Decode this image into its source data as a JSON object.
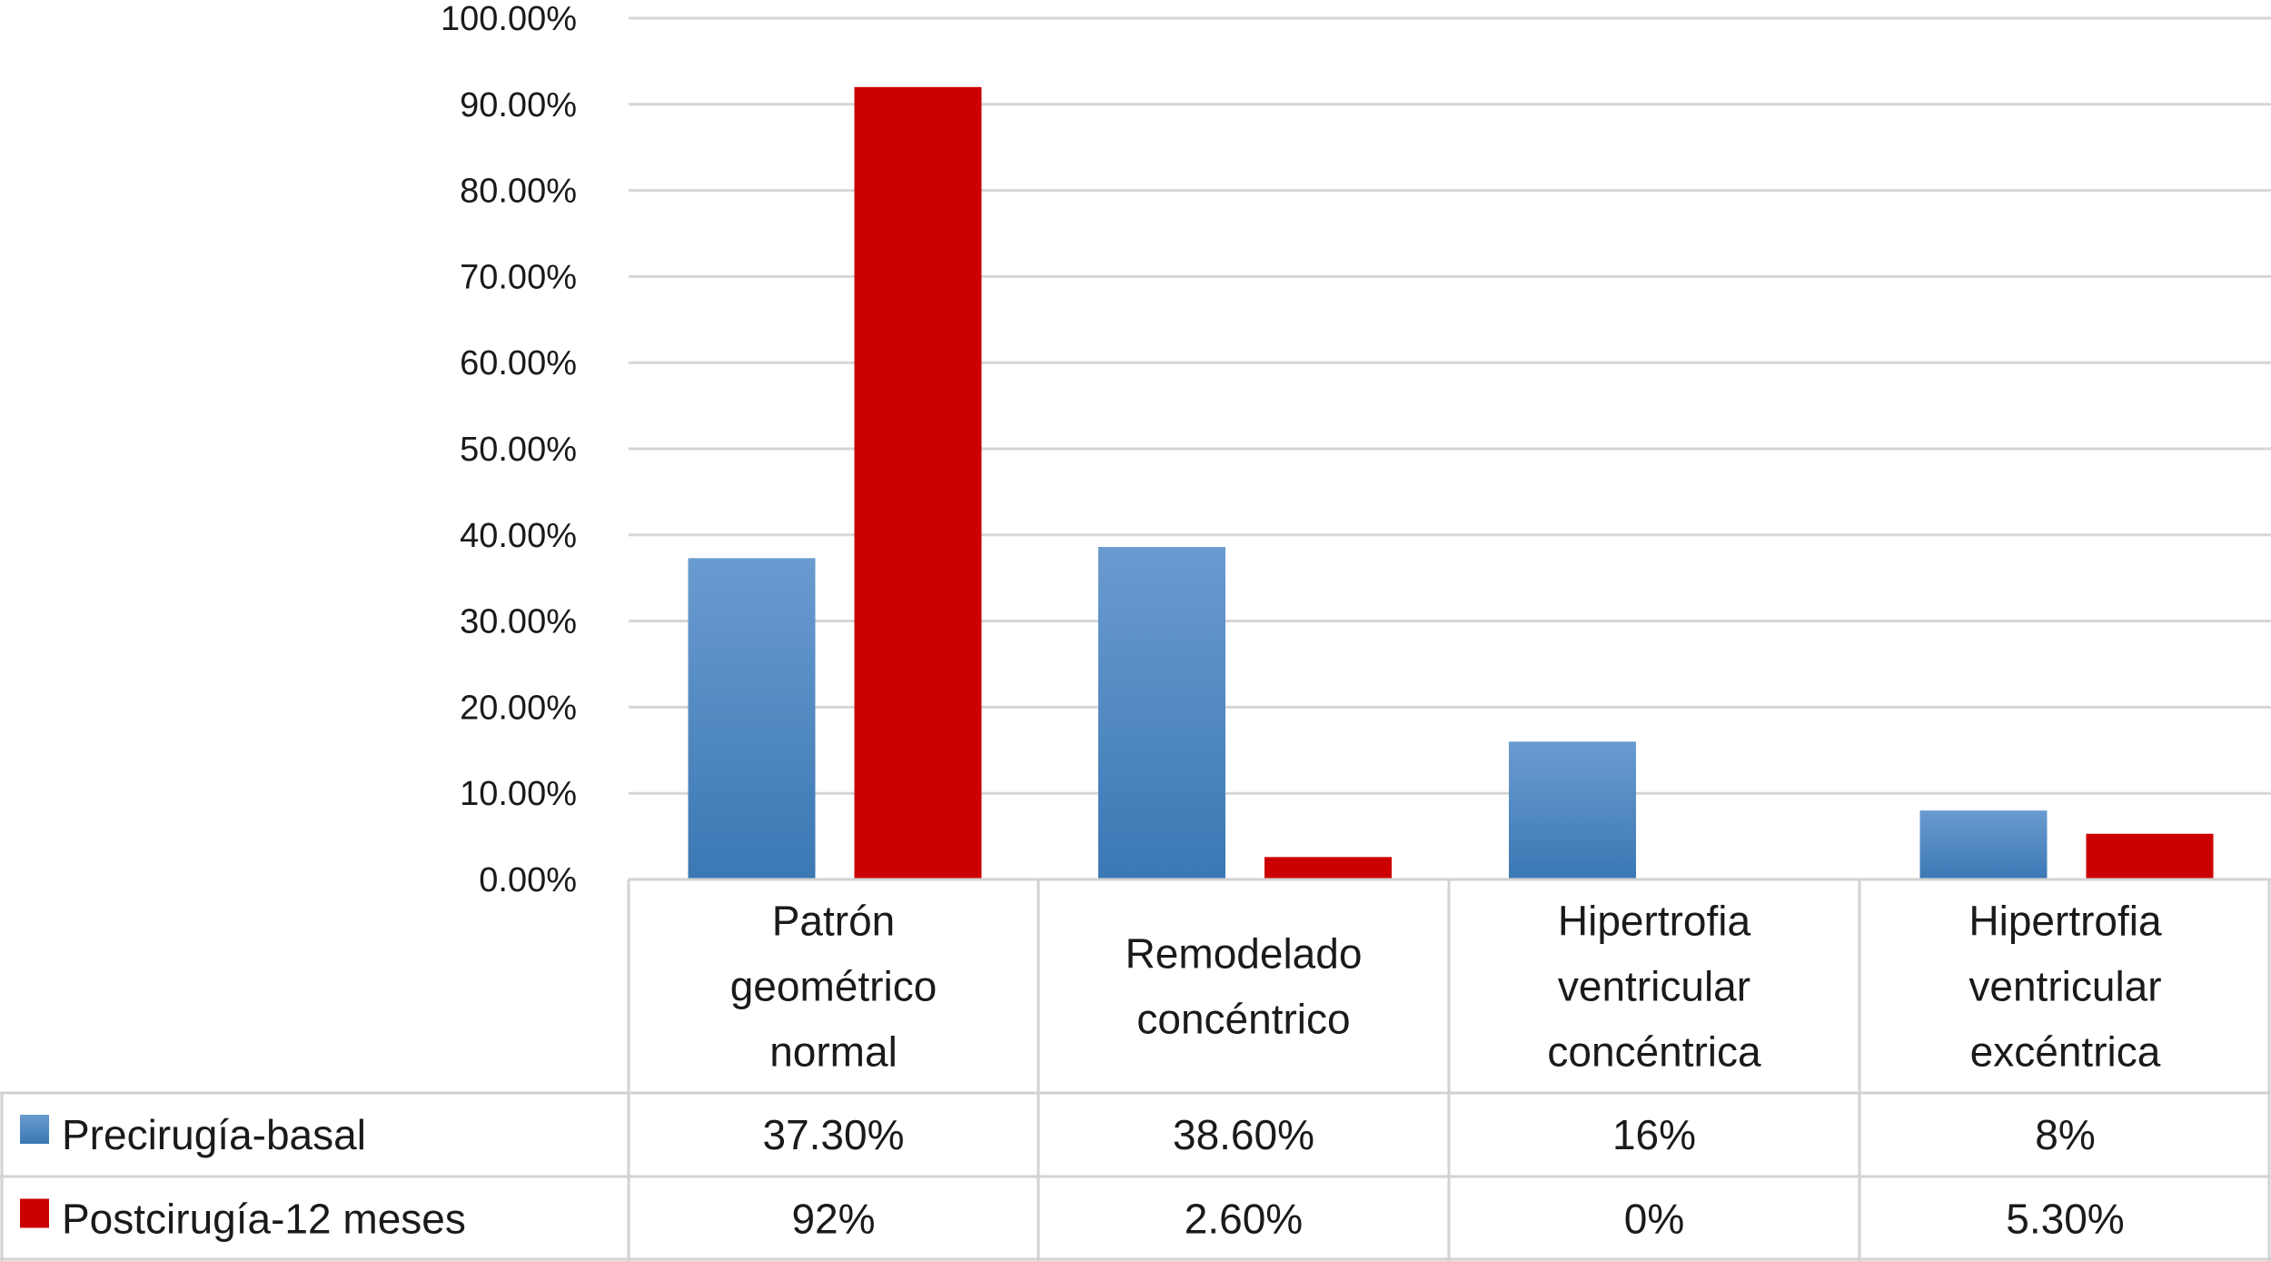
{
  "chart_data": {
    "type": "bar",
    "categories": [
      [
        "Patrón",
        "geométrico",
        "normal"
      ],
      [
        "Remodelado",
        "concéntrico"
      ],
      [
        "Hipertrofia",
        "ventricular",
        "concéntrica"
      ],
      [
        "Hipertrofia",
        "ventricular",
        "excéntrica"
      ]
    ],
    "series": [
      {
        "name": "Precirugía-basal",
        "color": "#4a86c0",
        "values": [
          37.3,
          38.6,
          16,
          8
        ],
        "labels": [
          "37.30%",
          "38.60%",
          "16%",
          "8%"
        ]
      },
      {
        "name": "Postcirugía-12 meses",
        "color": "#cc0000",
        "values": [
          92,
          2.6,
          0,
          5.3
        ],
        "labels": [
          "92%",
          "2.60%",
          "0%",
          "5.30%"
        ]
      }
    ],
    "y_ticks": [
      "0.00%",
      "10.00%",
      "20.00%",
      "30.00%",
      "40.00%",
      "50.00%",
      "60.00%",
      "70.00%",
      "80.00%",
      "90.00%",
      "100.00%"
    ],
    "ylim": [
      0,
      100
    ],
    "grid": true,
    "legend": "data-table-left",
    "title": "",
    "xlabel": "",
    "ylabel": ""
  }
}
